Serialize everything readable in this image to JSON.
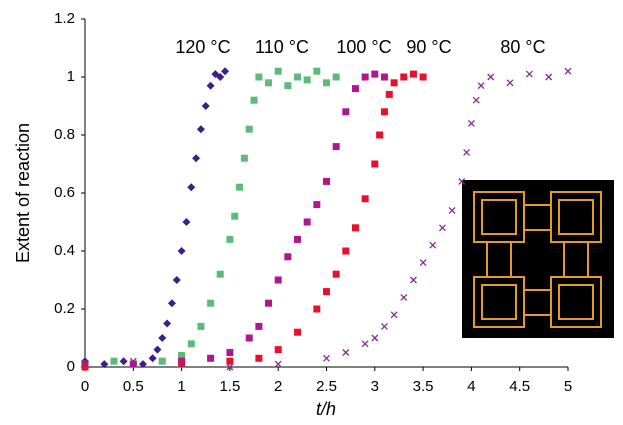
{
  "chart_data": {
    "type": "scatter",
    "x_label": "t/h",
    "y_label": "Extent of reaction",
    "xlim": [
      0,
      5
    ],
    "xticks": [
      0,
      0.5,
      1,
      1.5,
      2,
      2.5,
      3,
      3.5,
      4,
      4.5,
      5
    ],
    "ylim": [
      0,
      1.2
    ],
    "yticks": [
      0,
      0.2,
      0.4,
      0.6,
      0.8,
      1,
      1.2
    ],
    "series": [
      {
        "name": "120 °C",
        "color": "#3b1f8c",
        "marker": "diamond",
        "x": [
          0,
          0.2,
          0.4,
          0.6,
          0.7,
          0.75,
          0.8,
          0.85,
          0.9,
          0.95,
          1.0,
          1.05,
          1.1,
          1.15,
          1.2,
          1.25,
          1.3,
          1.35,
          1.4,
          1.45
        ],
        "values": [
          0.02,
          0.01,
          0.02,
          0.01,
          0.03,
          0.06,
          0.1,
          0.15,
          0.22,
          0.3,
          0.4,
          0.5,
          0.62,
          0.72,
          0.82,
          0.9,
          0.97,
          1.01,
          1.0,
          1.02
        ]
      },
      {
        "name": "110 °C",
        "color": "#5dbb7a",
        "marker": "square",
        "x": [
          0,
          0.3,
          0.5,
          0.8,
          1.0,
          1.1,
          1.2,
          1.3,
          1.4,
          1.5,
          1.55,
          1.6,
          1.65,
          1.7,
          1.75,
          1.8,
          1.9,
          2.0,
          2.1,
          2.2,
          2.3,
          2.4,
          2.5,
          2.6
        ],
        "values": [
          0.01,
          0.02,
          0.01,
          0.02,
          0.04,
          0.08,
          0.14,
          0.22,
          0.32,
          0.44,
          0.52,
          0.62,
          0.72,
          0.82,
          0.92,
          1.0,
          0.98,
          1.02,
          0.97,
          1.0,
          0.99,
          1.02,
          0.98,
          1.0
        ]
      },
      {
        "name": "100 °C",
        "color": "#b0168f",
        "marker": "square",
        "x": [
          0,
          0.5,
          1.0,
          1.3,
          1.5,
          1.7,
          1.8,
          1.9,
          2.0,
          2.1,
          2.2,
          2.3,
          2.4,
          2.5,
          2.6,
          2.7,
          2.8,
          2.9,
          3.0,
          3.1
        ],
        "values": [
          0.01,
          0.01,
          0.02,
          0.03,
          0.05,
          0.1,
          0.14,
          0.22,
          0.3,
          0.38,
          0.44,
          0.5,
          0.56,
          0.64,
          0.76,
          0.88,
          0.96,
          1.0,
          1.01,
          1.0
        ]
      },
      {
        "name": "90 °C",
        "color": "#e8112d",
        "marker": "square",
        "x": [
          0,
          1.0,
          1.5,
          1.8,
          2.0,
          2.2,
          2.4,
          2.5,
          2.6,
          2.7,
          2.8,
          2.9,
          3.0,
          3.05,
          3.1,
          3.15,
          3.2,
          3.3,
          3.4,
          3.5
        ],
        "values": [
          0,
          0.01,
          0.02,
          0.03,
          0.06,
          0.12,
          0.2,
          0.26,
          0.32,
          0.4,
          0.48,
          0.58,
          0.7,
          0.8,
          0.88,
          0.94,
          0.98,
          1.0,
          1.01,
          1.0
        ]
      },
      {
        "name": "80 °C",
        "color": "#8b2a8b",
        "marker": "x",
        "x": [
          0,
          0.5,
          1.0,
          1.5,
          2.0,
          2.5,
          2.7,
          2.9,
          3.0,
          3.1,
          3.2,
          3.3,
          3.4,
          3.5,
          3.6,
          3.7,
          3.8,
          3.9,
          3.95,
          4.0,
          4.05,
          4.1,
          4.2,
          4.4,
          4.6,
          4.8,
          5.0
        ],
        "values": [
          0.01,
          0.02,
          0.01,
          0.0,
          0.01,
          0.03,
          0.05,
          0.08,
          0.1,
          0.14,
          0.18,
          0.24,
          0.3,
          0.36,
          0.42,
          0.48,
          0.54,
          0.64,
          0.74,
          0.84,
          0.92,
          0.97,
          1.0,
          0.98,
          1.01,
          1.0,
          1.02
        ]
      }
    ]
  }
}
